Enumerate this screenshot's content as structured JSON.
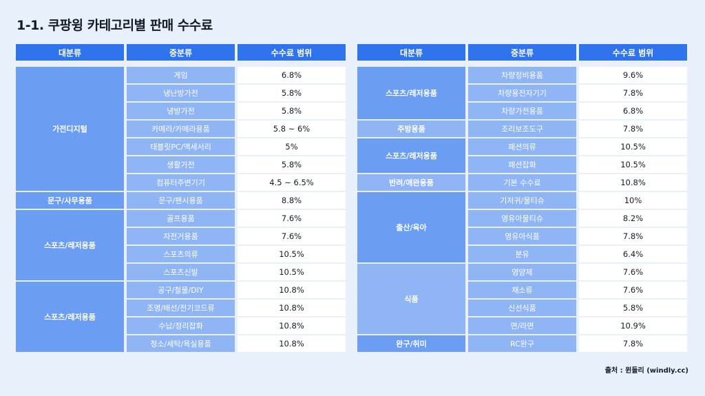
{
  "title": "1-1. 쿠팡윙 카테고리별 판매 수수료",
  "headers": [
    "대분류",
    "중분류",
    "수수료 범위"
  ],
  "source": "출처 : 윈들리 (windly.cc)",
  "left": {
    "groups": [
      {
        "category": "가전디지털",
        "items": [
          {
            "sub": "게임",
            "fee": "6.8%"
          },
          {
            "sub": "냉난방가전",
            "fee": "5.8%"
          },
          {
            "sub": "냉방가전",
            "fee": "5.8%"
          },
          {
            "sub": "카메라/카메라용품",
            "fee": "5.8 ~ 6%"
          },
          {
            "sub": "태블릿PC/액세서리",
            "fee": "5%"
          },
          {
            "sub": "생활가전",
            "fee": "5.8%"
          },
          {
            "sub": "컴퓨터주변기기",
            "fee": "4.5 ~ 6.5%"
          }
        ]
      },
      {
        "category": "문구/사무용품",
        "items": [
          {
            "sub": "문구/팬시용품",
            "fee": "8.8%"
          }
        ]
      },
      {
        "category": "스포츠/레저용품",
        "items": [
          {
            "sub": "골프용품",
            "fee": "7.6%"
          },
          {
            "sub": "자전거용품",
            "fee": "7.6%"
          },
          {
            "sub": "스포츠의류",
            "fee": "10.5%"
          },
          {
            "sub": "스포츠신발",
            "fee": "10.5%"
          }
        ]
      },
      {
        "category": "스포츠/레저용품",
        "items": [
          {
            "sub": "공구/철물/DIY",
            "fee": "10.8%"
          },
          {
            "sub": "조명/배선/전기코드류",
            "fee": "10.8%"
          },
          {
            "sub": "수납/정리잡화",
            "fee": "10.8%"
          },
          {
            "sub": "청소/세탁/욕실용품",
            "fee": "10.8%"
          }
        ]
      }
    ]
  },
  "right": {
    "groups": [
      {
        "category": "스포츠/레저용품",
        "items": [
          {
            "sub": "차량정비용품",
            "fee": "9.6%"
          },
          {
            "sub": "차량용전자기기",
            "fee": "7.8%"
          },
          {
            "sub": "차량가전용품",
            "fee": "6.8%"
          }
        ]
      },
      {
        "category": "주방용품",
        "items": [
          {
            "sub": "조리보조도구",
            "fee": "7.8%"
          }
        ]
      },
      {
        "category": "스포츠/레저용품",
        "items": [
          {
            "sub": "패션의류",
            "fee": "10.5%"
          },
          {
            "sub": "패션잡화",
            "fee": "10.5%"
          }
        ]
      },
      {
        "category": "반려/애완용품",
        "items": [
          {
            "sub": "기본 수수료",
            "fee": "10.8%"
          }
        ]
      },
      {
        "category": "출산/육아",
        "items": [
          {
            "sub": "기저귀/물티슈",
            "fee": "10%"
          },
          {
            "sub": "영유아물티슈",
            "fee": "8.2%"
          },
          {
            "sub": "영유아식품",
            "fee": "7.8%"
          },
          {
            "sub": "분유",
            "fee": "6.4%"
          }
        ]
      },
      {
        "category": "식품",
        "items": [
          {
            "sub": "영양제",
            "fee": "7.6%"
          },
          {
            "sub": "채소류",
            "fee": "7.6%"
          },
          {
            "sub": "신선식품",
            "fee": "5.8%"
          },
          {
            "sub": "면/라면",
            "fee": "10.9%"
          }
        ]
      },
      {
        "category": "완구/취미",
        "items": [
          {
            "sub": "RC완구",
            "fee": "7.8%"
          }
        ]
      }
    ]
  }
}
